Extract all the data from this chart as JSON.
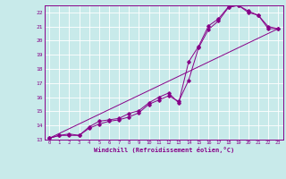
{
  "xlabel": "Windchill (Refroidissement éolien,°C)",
  "bg_color": "#c8eaea",
  "line_color": "#880088",
  "grid_color": "#ffffff",
  "xlim": [
    -0.5,
    23.5
  ],
  "ylim": [
    13,
    22.5
  ],
  "xticks": [
    0,
    1,
    2,
    3,
    4,
    5,
    6,
    7,
    8,
    9,
    10,
    11,
    12,
    13,
    14,
    15,
    16,
    17,
    18,
    19,
    20,
    21,
    22,
    23
  ],
  "yticks": [
    13,
    14,
    15,
    16,
    17,
    18,
    19,
    20,
    21,
    22
  ],
  "line1_x": [
    0,
    1,
    2,
    3,
    4,
    5,
    6,
    7,
    8,
    9,
    10,
    11,
    12,
    13,
    14,
    15,
    16,
    17,
    18,
    19,
    20,
    21,
    22,
    23
  ],
  "line1_y": [
    13.1,
    13.3,
    13.3,
    13.3,
    13.8,
    14.1,
    14.3,
    14.4,
    14.6,
    14.9,
    15.5,
    15.8,
    16.1,
    15.7,
    17.2,
    19.5,
    20.8,
    21.4,
    22.35,
    22.5,
    22.0,
    21.8,
    21.0,
    20.85
  ],
  "line2_x": [
    0,
    1,
    2,
    3,
    4,
    5,
    6,
    7,
    8,
    9,
    10,
    11,
    12,
    13,
    14,
    15,
    16,
    17,
    18,
    19,
    20,
    21,
    22,
    23
  ],
  "line2_y": [
    13.1,
    13.3,
    13.4,
    13.3,
    13.9,
    14.3,
    14.4,
    14.5,
    14.85,
    15.05,
    15.6,
    16.0,
    16.3,
    15.6,
    18.5,
    19.6,
    21.05,
    21.55,
    22.4,
    22.5,
    22.1,
    21.8,
    20.85,
    20.85
  ],
  "line3_x": [
    0,
    23
  ],
  "line3_y": [
    13.1,
    20.85
  ]
}
